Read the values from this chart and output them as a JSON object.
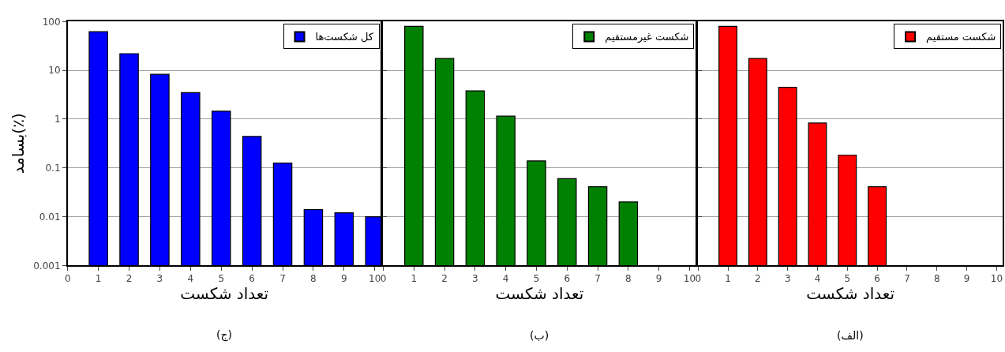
{
  "chart_data": [
    {
      "type": "bar",
      "title": "(ج)",
      "xlabel": "تعداد شکست",
      "ylabel": "بسامد(٪)",
      "log": true,
      "grid": "y",
      "legend": "top right",
      "xlim": [
        0,
        10.2
      ],
      "xticks": [
        0,
        1,
        2,
        3,
        4,
        5,
        6,
        7,
        8,
        9,
        10
      ],
      "ylim": [
        0.001,
        100
      ],
      "yticks": [
        0.001,
        0.01,
        0.1,
        1,
        10,
        100
      ],
      "x": [
        1,
        2,
        3,
        4,
        5,
        6,
        7,
        8,
        9,
        10
      ],
      "series": [
        {
          "name": "کل شکست‌ها",
          "color": "#0000ff",
          "values": [
            62,
            22,
            8.3,
            3.5,
            1.45,
            0.44,
            0.126,
            0.014,
            0.012,
            0.01
          ]
        }
      ]
    },
    {
      "type": "bar",
      "title": "(ب)",
      "xlabel": "تعداد شکست",
      "log": true,
      "grid": "y",
      "legend": "top right",
      "tick_labels": "x",
      "xlim": [
        0,
        10.2
      ],
      "xticks": [
        0,
        1,
        2,
        3,
        4,
        5,
        6,
        7,
        8,
        9,
        10
      ],
      "ylim": [
        0.001,
        100
      ],
      "yticks": [
        0.001,
        0.01,
        0.1,
        1,
        10,
        100
      ],
      "x": [
        1,
        2,
        3,
        4,
        5,
        6,
        7,
        8
      ],
      "series": [
        {
          "name": "شکست غیرمستقیم",
          "color": "#008000",
          "values": [
            80,
            17.5,
            3.8,
            1.15,
            0.139,
            0.06,
            0.041,
            0.02
          ]
        }
      ]
    },
    {
      "type": "bar",
      "title": "(الف)",
      "xlabel": "تعداد شکست",
      "log": true,
      "grid": "y",
      "legend": "top right",
      "tick_labels": "x",
      "xlim": [
        0,
        10.2
      ],
      "xticks": [
        0,
        1,
        2,
        3,
        4,
        5,
        6,
        7,
        8,
        9,
        10
      ],
      "ylim": [
        0.001,
        100
      ],
      "yticks": [
        0.001,
        0.01,
        0.1,
        1,
        10,
        100
      ],
      "x": [
        1,
        2,
        3,
        4,
        5,
        6
      ],
      "series": [
        {
          "name": "شکست مستقیم",
          "color": "#ff0000",
          "values": [
            80,
            17.5,
            4.5,
            0.83,
            0.183,
            0.041
          ]
        }
      ]
    }
  ]
}
